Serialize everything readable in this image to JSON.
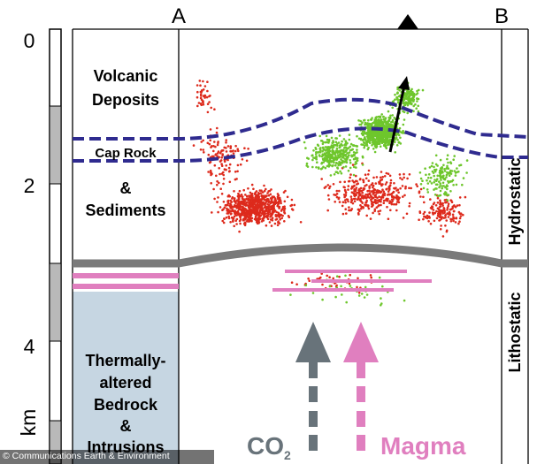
{
  "depth_scale": {
    "ticks": [
      "0",
      "2",
      "4"
    ],
    "unit": "km"
  },
  "section": {
    "left_label": "A",
    "right_label": "B"
  },
  "layers": {
    "volcanic": [
      "Volcanic",
      "Deposits"
    ],
    "cap_rock": "Cap Rock",
    "sediments": [
      "&",
      "Sediments"
    ],
    "bedrock": [
      "Thermally-",
      "altered",
      "Bedrock",
      "&",
      "Intrusions"
    ]
  },
  "pressure_regimes": {
    "upper": "Hydrostatic",
    "lower": "Lithostatic"
  },
  "flux_arrows": {
    "co2": {
      "label": "CO",
      "subscript": "2",
      "color": "#68737a"
    },
    "magma": {
      "label": "Magma",
      "color": "#e07fbf"
    }
  },
  "credit": "© Communications Earth & Environment",
  "colors": {
    "cap_rock_boundary": "#2f2b8f",
    "basement_boundary": "#7a7a7a",
    "bedrock_fill": "#c6d6e2",
    "scale_bar": "#b9b9b9",
    "intrusions": "#e07fbf",
    "red_points": "#dd2a1c",
    "green_points": "#6ec62c"
  }
}
